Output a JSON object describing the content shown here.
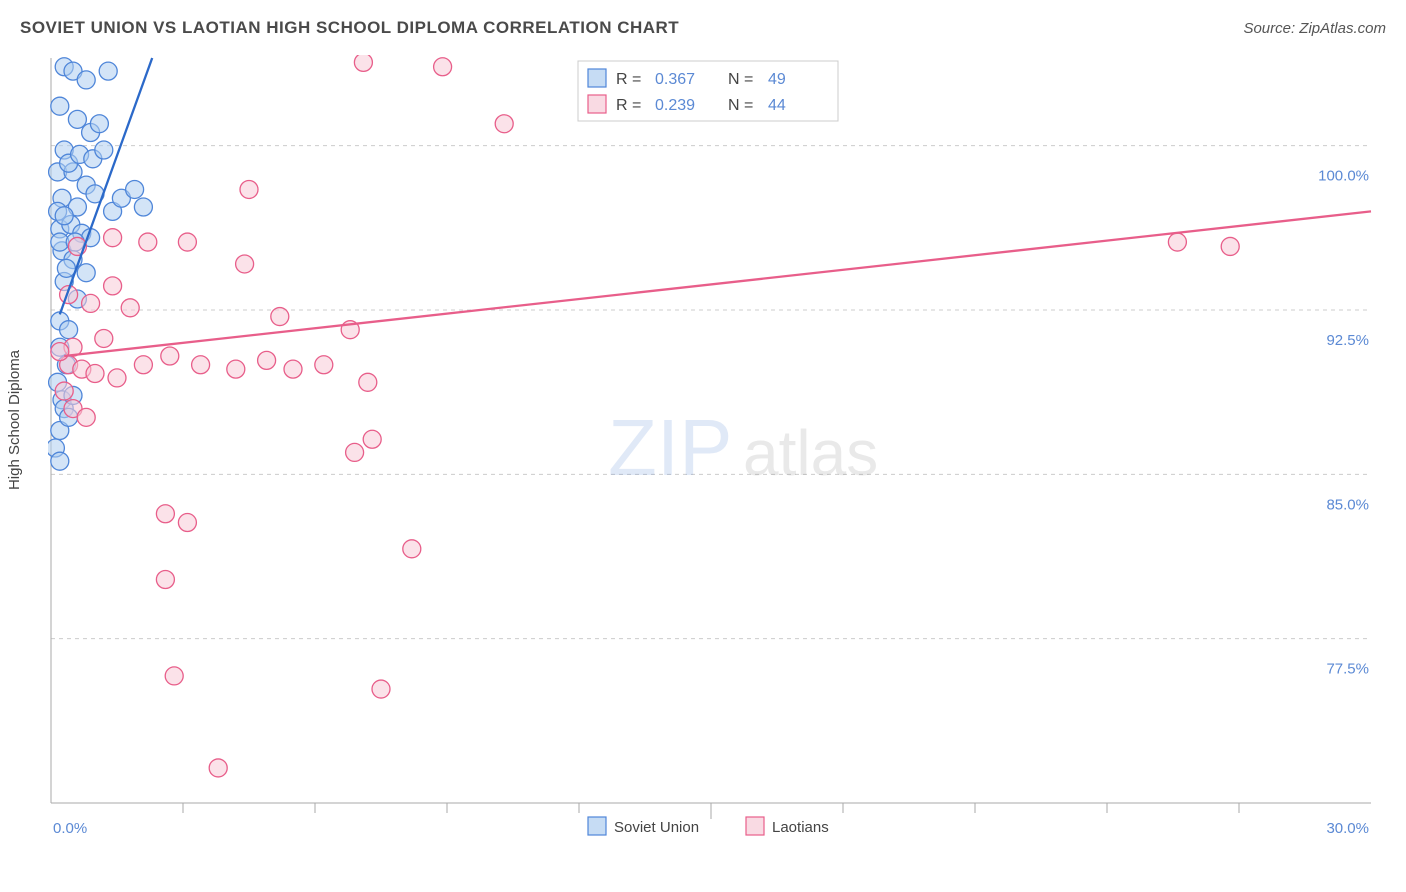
{
  "header": {
    "title": "SOVIET UNION VS LAOTIAN HIGH SCHOOL DIPLOMA CORRELATION CHART",
    "source": "Source: ZipAtlas.com"
  },
  "chart": {
    "type": "scatter",
    "ylabel": "High School Diploma",
    "xlim": [
      0,
      30
    ],
    "ylim": [
      70,
      104
    ],
    "xtick_labels": [
      "0.0%",
      "30.0%"
    ],
    "xtick_positions": [
      0,
      30
    ],
    "xtick_minor_positions": [
      3,
      6,
      9,
      12,
      15,
      18,
      21,
      24,
      27
    ],
    "ytick_labels": [
      "77.5%",
      "85.0%",
      "92.5%",
      "100.0%"
    ],
    "ytick_positions": [
      77.5,
      85.0,
      92.5,
      100.0
    ],
    "background_color": "#ffffff",
    "grid_color": "#cccccc",
    "axis_color": "#aaaaaa",
    "marker_radius": 9,
    "marker_stroke_width": 1.3,
    "series": [
      {
        "name": "Soviet Union",
        "fill_color": "#aecdf0",
        "fill_opacity": 0.55,
        "stroke_color": "#4f86d9",
        "r": 0.367,
        "n": 49,
        "trend": {
          "x1": 0.2,
          "y1": 92.3,
          "x2": 2.3,
          "y2": 104.0,
          "color": "#2b69c9",
          "width": 2.3
        },
        "points": [
          [
            0.3,
            103.6
          ],
          [
            0.5,
            103.4
          ],
          [
            0.8,
            103.0
          ],
          [
            1.3,
            103.4
          ],
          [
            0.2,
            101.8
          ],
          [
            0.6,
            101.2
          ],
          [
            0.9,
            100.6
          ],
          [
            1.1,
            101.0
          ],
          [
            0.3,
            99.8
          ],
          [
            0.15,
            98.8
          ],
          [
            0.5,
            98.8
          ],
          [
            0.8,
            98.2
          ],
          [
            0.25,
            97.6
          ],
          [
            0.6,
            97.2
          ],
          [
            1.0,
            97.8
          ],
          [
            1.4,
            97.0
          ],
          [
            1.6,
            97.6
          ],
          [
            1.9,
            98.0
          ],
          [
            2.1,
            97.2
          ],
          [
            0.2,
            96.2
          ],
          [
            0.45,
            96.4
          ],
          [
            0.7,
            96.0
          ],
          [
            0.9,
            95.8
          ],
          [
            0.25,
            95.2
          ],
          [
            0.5,
            94.8
          ],
          [
            0.3,
            93.8
          ],
          [
            0.6,
            93.0
          ],
          [
            0.2,
            92.0
          ],
          [
            0.4,
            91.6
          ],
          [
            0.2,
            90.8
          ],
          [
            0.35,
            90.0
          ],
          [
            0.15,
            89.2
          ],
          [
            0.25,
            88.4
          ],
          [
            0.3,
            88.0
          ],
          [
            0.5,
            88.6
          ],
          [
            0.2,
            87.0
          ],
          [
            0.4,
            87.6
          ],
          [
            0.1,
            86.2
          ],
          [
            0.2,
            85.6
          ],
          [
            0.2,
            95.6
          ],
          [
            0.35,
            94.4
          ],
          [
            0.55,
            95.6
          ],
          [
            0.8,
            94.2
          ],
          [
            0.15,
            97.0
          ],
          [
            0.4,
            99.2
          ],
          [
            0.65,
            99.6
          ],
          [
            0.95,
            99.4
          ],
          [
            1.2,
            99.8
          ],
          [
            0.3,
            96.8
          ]
        ]
      },
      {
        "name": "Laotians",
        "fill_color": "#f7cad7",
        "fill_opacity": 0.55,
        "stroke_color": "#e85e8a",
        "r": 0.239,
        "n": 44,
        "trend": {
          "x1": 0.3,
          "y1": 90.4,
          "x2": 30.0,
          "y2": 97.0,
          "color": "#e85e8a",
          "width": 2.3
        },
        "points": [
          [
            7.1,
            103.8
          ],
          [
            8.9,
            103.6
          ],
          [
            10.3,
            101.0
          ],
          [
            4.5,
            98.0
          ],
          [
            1.4,
            95.8
          ],
          [
            2.2,
            95.6
          ],
          [
            3.1,
            95.6
          ],
          [
            4.4,
            94.6
          ],
          [
            5.2,
            92.2
          ],
          [
            4.9,
            90.2
          ],
          [
            0.6,
            95.4
          ],
          [
            0.9,
            92.8
          ],
          [
            1.2,
            91.2
          ],
          [
            1.4,
            93.6
          ],
          [
            0.5,
            90.8
          ],
          [
            0.4,
            90.0
          ],
          [
            0.2,
            90.6
          ],
          [
            0.7,
            89.8
          ],
          [
            1.0,
            89.6
          ],
          [
            1.5,
            89.4
          ],
          [
            2.1,
            90.0
          ],
          [
            2.7,
            90.4
          ],
          [
            3.4,
            90.0
          ],
          [
            4.2,
            89.8
          ],
          [
            5.5,
            89.8
          ],
          [
            6.2,
            90.0
          ],
          [
            7.2,
            89.2
          ],
          [
            6.8,
            91.6
          ],
          [
            2.6,
            83.2
          ],
          [
            2.6,
            80.2
          ],
          [
            3.8,
            71.6
          ],
          [
            6.9,
            86.0
          ],
          [
            7.3,
            86.6
          ],
          [
            8.2,
            81.6
          ],
          [
            7.5,
            75.2
          ],
          [
            2.8,
            75.8
          ],
          [
            3.1,
            82.8
          ],
          [
            0.5,
            88.0
          ],
          [
            0.3,
            88.8
          ],
          [
            0.8,
            87.6
          ],
          [
            25.6,
            95.6
          ],
          [
            26.8,
            95.4
          ],
          [
            1.8,
            92.6
          ],
          [
            0.4,
            93.2
          ]
        ]
      }
    ],
    "bottom_legend": [
      {
        "label": "Soviet Union",
        "fill": "#aecdf0",
        "stroke": "#4f86d9"
      },
      {
        "label": "Laotians",
        "fill": "#f7cad7",
        "stroke": "#e85e8a"
      }
    ],
    "watermark": {
      "part1": "ZIP",
      "part2": "atlas"
    }
  }
}
